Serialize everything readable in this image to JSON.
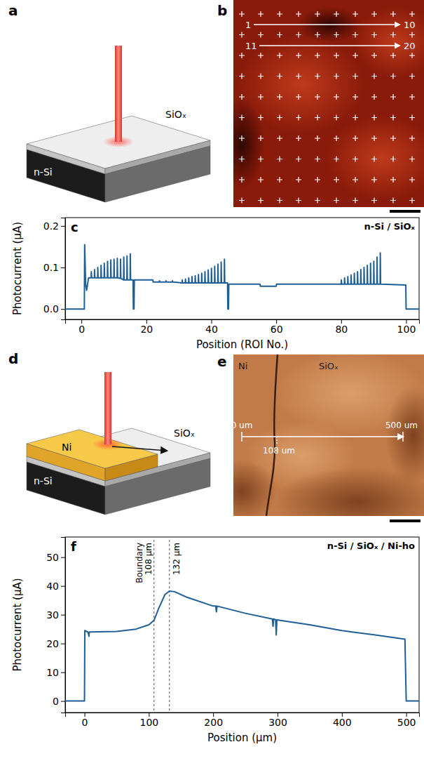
{
  "figure": {
    "panel_a": {
      "letter": "a",
      "labels": [
        "SiOₓ",
        "n-Si"
      ]
    },
    "panel_b": {
      "letter": "b",
      "roi_labels": [
        "1",
        "10",
        "11",
        "20"
      ]
    },
    "panel_d": {
      "letter": "d",
      "labels": [
        "Ni",
        "SiOₓ",
        "n-Si"
      ]
    },
    "panel_e": {
      "letter": "e",
      "labels": [
        "Ni",
        "SiOₓ"
      ],
      "scale": [
        "0 um",
        "500 um",
        "108 um"
      ]
    }
  },
  "chart_data": [
    {
      "type": "line",
      "panel": "c",
      "title": "n-Si / SiOₓ",
      "x_label": "Position (ROI No.)",
      "y_label": "Photocurrent (μA)",
      "color": "#1f5f96",
      "xlim": [
        -5,
        104
      ],
      "xticks": [
        0,
        20,
        40,
        60,
        80,
        100
      ],
      "ylim": [
        -0.025,
        0.22
      ],
      "yticks": [
        {
          "value": 0,
          "label": "0.0"
        },
        0.1,
        0.2
      ],
      "x": [
        -5,
        0.9,
        1,
        1.3,
        1.6,
        2.2,
        3,
        3.05,
        3.15,
        4,
        4.05,
        4.15,
        5,
        5.05,
        5.15,
        6,
        6.05,
        6.15,
        7,
        7.05,
        7.15,
        8,
        8.05,
        8.15,
        9,
        9.05,
        9.15,
        10,
        10.05,
        10.15,
        11,
        11.05,
        11.15,
        12,
        12.05,
        12.15,
        13,
        13.05,
        13.15,
        14,
        14.05,
        14.15,
        15,
        15.05,
        15.15,
        15.9,
        16,
        16.2,
        16.3,
        22,
        22.1,
        24,
        24.05,
        24.15,
        26,
        26.05,
        26.15,
        28,
        28.05,
        28.15,
        31,
        31.05,
        31.15,
        32,
        32.05,
        32.15,
        33,
        33.05,
        33.15,
        34,
        34.05,
        34.15,
        35,
        35.05,
        35.15,
        36,
        36.05,
        36.15,
        37,
        37.05,
        37.15,
        38,
        38.05,
        38.15,
        39,
        39.05,
        39.15,
        40,
        40.05,
        40.15,
        41,
        41.05,
        41.15,
        42,
        42.05,
        42.15,
        43,
        43.05,
        43.15,
        44,
        44.05,
        44.15,
        45,
        45.1,
        45.3,
        45.4,
        55,
        55.1,
        60,
        60.1,
        80,
        80.05,
        80.15,
        81,
        81.05,
        81.15,
        82,
        82.05,
        82.15,
        83,
        83.05,
        83.15,
        84,
        84.05,
        84.15,
        85,
        85.05,
        85.15,
        86,
        86.05,
        86.15,
        87,
        87.05,
        87.15,
        88,
        88.05,
        88.15,
        89,
        89.05,
        89.15,
        90,
        90.05,
        90.15,
        91,
        91.05,
        91.15,
        92,
        92.05,
        92.15,
        99.9,
        100,
        104
      ],
      "values": [
        0,
        0,
        0.155,
        0.06,
        0.045,
        0.075,
        0.075,
        0.09,
        0.075,
        0.075,
        0.095,
        0.075,
        0.075,
        0.1,
        0.075,
        0.075,
        0.105,
        0.075,
        0.075,
        0.11,
        0.075,
        0.075,
        0.115,
        0.075,
        0.075,
        0.118,
        0.075,
        0.075,
        0.12,
        0.075,
        0.075,
        0.122,
        0.075,
        0.074,
        0.12,
        0.074,
        0.07,
        0.125,
        0.07,
        0.07,
        0.128,
        0.07,
        0.07,
        0.133,
        0.07,
        0.07,
        0,
        0,
        0.07,
        0.07,
        0.065,
        0.065,
        0.068,
        0.065,
        0.065,
        0.068,
        0.065,
        0.065,
        0.068,
        0.065,
        0.063,
        0.07,
        0.063,
        0.063,
        0.072,
        0.063,
        0.063,
        0.075,
        0.063,
        0.063,
        0.078,
        0.063,
        0.063,
        0.08,
        0.063,
        0.063,
        0.083,
        0.063,
        0.063,
        0.086,
        0.063,
        0.063,
        0.09,
        0.063,
        0.063,
        0.094,
        0.063,
        0.063,
        0.098,
        0.063,
        0.063,
        0.103,
        0.063,
        0.063,
        0.108,
        0.063,
        0.063,
        0.113,
        0.063,
        0.063,
        0.12,
        0.063,
        0.063,
        0,
        0,
        0.06,
        0.06,
        0.055,
        0.055,
        0.06,
        0.06,
        0.07,
        0.06,
        0.06,
        0.075,
        0.06,
        0.06,
        0.078,
        0.06,
        0.06,
        0.082,
        0.06,
        0.06,
        0.086,
        0.06,
        0.06,
        0.09,
        0.06,
        0.06,
        0.095,
        0.06,
        0.06,
        0.1,
        0.06,
        0.06,
        0.105,
        0.06,
        0.06,
        0.11,
        0.06,
        0.06,
        0.115,
        0.06,
        0.06,
        0.125,
        0.06,
        0.06,
        0.135,
        0.06,
        0.058,
        0,
        0
      ]
    },
    {
      "type": "line",
      "panel": "f",
      "title": "n-Si / SiOₓ / Ni-ho",
      "x_label": "Position (μm)",
      "y_label": "Photocurrent (μA)",
      "color": "#1f5f96",
      "xlim": [
        -30,
        520
      ],
      "xticks": [
        0,
        100,
        200,
        300,
        400,
        500
      ],
      "ylim": [
        -4,
        57
      ],
      "yticks": [
        0,
        10,
        20,
        30,
        40,
        50
      ],
      "x": [
        -30,
        0,
        0.5,
        5,
        6,
        7,
        7.5,
        50,
        80,
        100,
        108,
        115,
        125,
        132,
        140,
        160,
        200,
        204,
        205,
        206,
        250,
        292,
        293,
        294,
        297,
        298,
        299,
        350,
        400,
        450,
        498,
        500,
        520
      ],
      "values": [
        0,
        0,
        24.5,
        24,
        23.5,
        22.5,
        24,
        24.2,
        25,
        26.5,
        28,
        32,
        37,
        38.2,
        38,
        36,
        33,
        33,
        31,
        33,
        30.5,
        28.5,
        26,
        28.5,
        28.3,
        23,
        28.2,
        26.5,
        24.5,
        23,
        21.5,
        0,
        0
      ],
      "annotations": [
        {
          "x": 108,
          "text": [
            "Boundary",
            "108 μm"
          ]
        },
        {
          "x": 132,
          "text": [
            "132 μm"
          ]
        }
      ]
    }
  ]
}
